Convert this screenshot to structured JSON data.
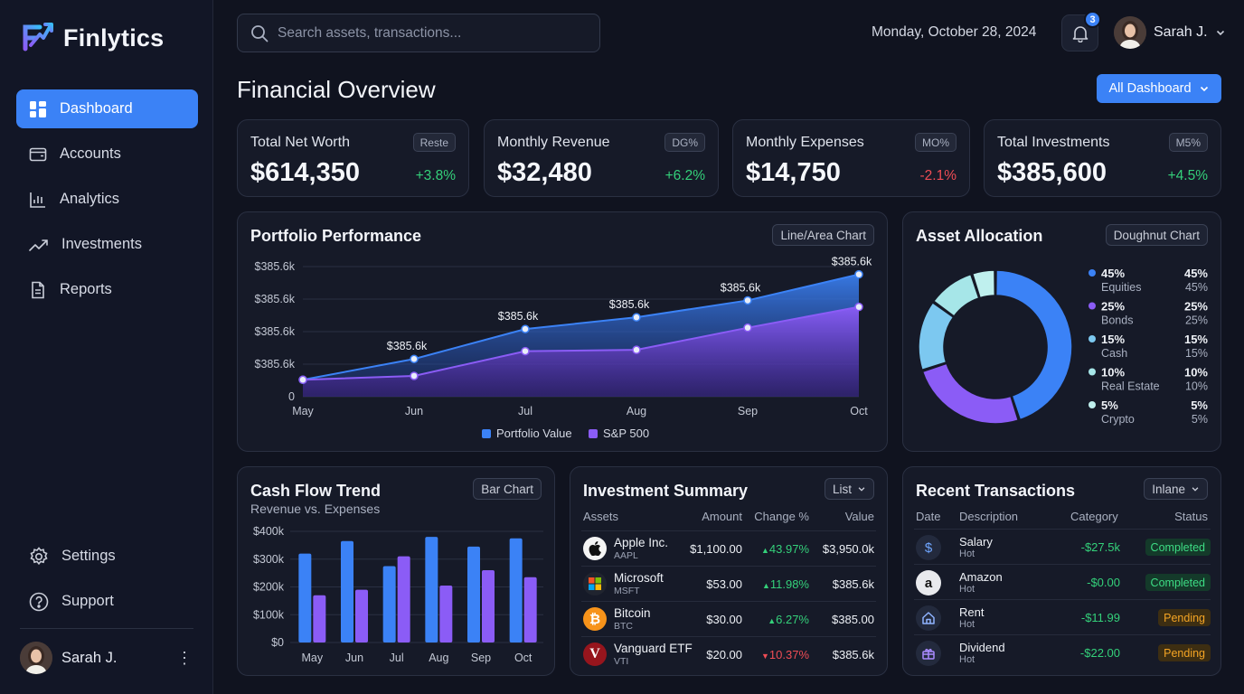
{
  "brand": {
    "name": "Finlytics"
  },
  "sidebar": {
    "items": [
      {
        "label": "Dashboard",
        "icon": "dashboard-icon",
        "active": true
      },
      {
        "label": "Accounts",
        "icon": "wallet-icon"
      },
      {
        "label": "Analytics",
        "icon": "bar-chart-icon"
      },
      {
        "label": "Investments",
        "icon": "trend-up-icon"
      },
      {
        "label": "Reports",
        "icon": "document-icon"
      }
    ],
    "bottom": [
      {
        "label": "Settings",
        "icon": "gear-icon"
      },
      {
        "label": "Support",
        "icon": "help-icon"
      }
    ],
    "user": {
      "name": "Sarah J."
    }
  },
  "header": {
    "search_placeholder": "Search assets, transactions...",
    "date": "Monday, October 28, 2024",
    "notifications": "3",
    "user": "Sarah J."
  },
  "page": {
    "title": "Financial Overview",
    "dashboard_button": "All Dashboard"
  },
  "stats": [
    {
      "label": "Total Net Worth",
      "tag": "Reste",
      "value": "$614,350",
      "change": "+3.8%",
      "positive": true
    },
    {
      "label": "Monthly Revenue",
      "tag": "DG%",
      "value": "$32,480",
      "change": "+6.2%",
      "positive": true
    },
    {
      "label": "Monthly Expenses",
      "tag": "MO%",
      "value": "$14,750",
      "change": "-2.1%",
      "positive": false
    },
    {
      "label": "Total Investments",
      "tag": "M5%",
      "value": "$385,600",
      "change": "+4.5%",
      "positive": true
    }
  ],
  "portfolio": {
    "title": "Portfolio Performance",
    "chip": "Line/Area Chart",
    "legend": [
      "Portfolio Value",
      "S&P 500"
    ]
  },
  "allocation": {
    "title": "Asset Allocation",
    "chip": "Doughnut Chart"
  },
  "cashflow": {
    "title": "Cash Flow Trend",
    "subtitle": "Revenue vs. Expenses",
    "chip": "Bar Chart"
  },
  "investments": {
    "title": "Investment Summary",
    "chip": "List",
    "headers": [
      "Assets",
      "Amount",
      "Change %",
      "Value"
    ],
    "rows": [
      {
        "name": "Apple Inc.",
        "ticker": "AAPL",
        "icon": "apple-icon",
        "amount": "$1,100.00",
        "change": "43.97%",
        "up": true,
        "value": "$3,950.0k"
      },
      {
        "name": "Microsoft",
        "ticker": "MSFT",
        "icon": "microsoft-icon",
        "amount": "$53.00",
        "change": "11.98%",
        "up": true,
        "value": "$385.6k"
      },
      {
        "name": "Bitcoin",
        "ticker": "BTC",
        "icon": "bitcoin-icon",
        "amount": "$30.00",
        "change": "6.27%",
        "up": true,
        "value": "$385.00"
      },
      {
        "name": "Vanguard ETF",
        "ticker": "VTI",
        "icon": "vanguard-icon",
        "amount": "$20.00",
        "change": "10.37%",
        "up": false,
        "value": "$385.6k"
      }
    ]
  },
  "transactions": {
    "title": "Recent Transactions",
    "chip": "Inlane",
    "headers": [
      "Date",
      "Description",
      "Category",
      "Status"
    ],
    "rows": [
      {
        "name": "Salary",
        "sub": "Hot",
        "icon": "dollar-icon",
        "amount": "-$27.5k",
        "status": "Completed"
      },
      {
        "name": "Amazon",
        "sub": "Hot",
        "icon": "amazon-icon",
        "amount": "-$0.00",
        "status": "Completed"
      },
      {
        "name": "Rent",
        "sub": "Hot",
        "icon": "home-icon",
        "amount": "-$11.99",
        "status": "Pending"
      },
      {
        "name": "Dividend",
        "sub": "Hot",
        "icon": "gift-icon",
        "amount": "-$22.00",
        "status": "Pending"
      }
    ]
  },
  "colors": {
    "accent": "#3b82f6",
    "purple": "#8b5cf6",
    "positive": "#34d07a",
    "negative": "#f04d55",
    "pending": "#f5a524"
  },
  "chart_data": [
    {
      "type": "area",
      "title": "Portfolio Performance",
      "categories": [
        "May",
        "Jun",
        "Jul",
        "Aug",
        "Sep",
        "Oct"
      ],
      "y_tick_labels": [
        "$385.6k",
        "$385.6k",
        "$385.6k",
        "$385.6k",
        "0"
      ],
      "series": [
        {
          "name": "Portfolio Value",
          "values": [
            0.13,
            0.29,
            0.52,
            0.61,
            0.74,
            0.94
          ],
          "point_labels": [
            "",
            "$385.6k",
            "$385.6k",
            "$385.6k",
            "$385.6k",
            "$385.6k"
          ],
          "color": "#3b82f6"
        },
        {
          "name": "S&P 500",
          "values": [
            0.13,
            0.16,
            0.35,
            0.36,
            0.53,
            0.69
          ],
          "color": "#8b5cf6"
        }
      ],
      "ylim": [
        0,
        1
      ],
      "grid": true,
      "legend": "bottom"
    },
    {
      "type": "pie",
      "title": "Asset Allocation",
      "donut": true,
      "categories": [
        "Equities",
        "Bonds",
        "Cash",
        "Real Estate",
        "Crypto"
      ],
      "values": [
        45,
        25,
        15,
        10,
        5
      ],
      "labels": [
        "45%",
        "25%",
        "15%",
        "10%",
        "5%"
      ],
      "colors": [
        "#3b82f6",
        "#8b5cf6",
        "#7cc8f0",
        "#a6e6e8",
        "#bff0ee"
      ],
      "legend": "right"
    },
    {
      "type": "bar",
      "title": "Cash Flow Trend",
      "subtitle": "Revenue vs. Expenses",
      "categories": [
        "May",
        "Jun",
        "Jul",
        "Aug",
        "Sep",
        "Oct"
      ],
      "series": [
        {
          "name": "Revenue",
          "values": [
            320000,
            365000,
            275000,
            380000,
            345000,
            375000
          ],
          "color": "#3b82f6"
        },
        {
          "name": "Expenses",
          "values": [
            170000,
            190000,
            310000,
            205000,
            260000,
            235000
          ],
          "color": "#8b5cf6"
        }
      ],
      "y_tick_labels": [
        "$400k",
        "$300k",
        "$200k",
        "$100k",
        "$0"
      ],
      "ylim": [
        0,
        400000
      ],
      "grid": true
    }
  ]
}
